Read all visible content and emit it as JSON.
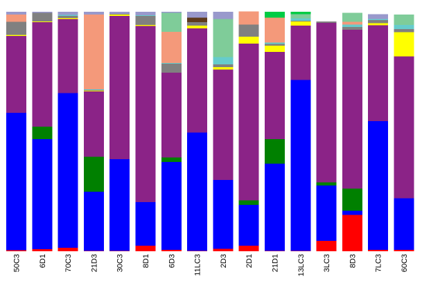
{
  "chart_data": {
    "type": "bar",
    "stacked": true,
    "orientation": "vertical",
    "title": "",
    "xlabel": "",
    "ylabel": "",
    "ylim": [
      0,
      1
    ],
    "grid": false,
    "legend": "none",
    "categories": [
      "50C3",
      "6D1",
      "70C3",
      "21D3",
      "30C3",
      "8D1",
      "6D3",
      "11LC3",
      "2D3",
      "2D1",
      "21D1",
      "13LC3",
      "3LC3",
      "8D3",
      "7LC3",
      "60C3"
    ],
    "series": [
      {
        "color": "#ff0000",
        "values": [
          0.005,
          0.008,
          0.014,
          0.002,
          0.002,
          0.023,
          0.006,
          0.002,
          0.01,
          0.023,
          0.002,
          0.002,
          0.044,
          0.152,
          0.006,
          0.006
        ]
      },
      {
        "color": "#0000ff",
        "values": [
          0.573,
          0.46,
          0.647,
          0.247,
          0.382,
          0.182,
          0.367,
          0.493,
          0.287,
          0.17,
          0.364,
          0.713,
          0.231,
          0.017,
          0.538,
          0.215
        ]
      },
      {
        "color": "#008000",
        "values": [
          0.0,
          0.052,
          0.0,
          0.146,
          0.0,
          0.0,
          0.018,
          0.0,
          0.0,
          0.02,
          0.102,
          0.0,
          0.012,
          0.092,
          0.0,
          0.0
        ]
      },
      {
        "color": "#8b2387",
        "values": [
          0.321,
          0.437,
          0.308,
          0.273,
          0.598,
          0.736,
          0.355,
          0.435,
          0.462,
          0.654,
          0.364,
          0.227,
          0.667,
          0.664,
          0.399,
          0.592
        ]
      },
      {
        "color": "#ffff00",
        "values": [
          0.004,
          0.003,
          0.005,
          0.002,
          0.006,
          0.004,
          0.0,
          0.012,
          0.01,
          0.029,
          0.027,
          0.017,
          0.0,
          0.0,
          0.01,
          0.102
        ]
      },
      {
        "color": "#808080",
        "values": [
          0.055,
          0.035,
          0.008,
          0.004,
          0.004,
          0.038,
          0.037,
          0.015,
          0.012,
          0.05,
          0.006,
          0.004,
          0.006,
          0.012,
          0.012,
          0.013
        ]
      },
      {
        "color": "#66cccc",
        "values": [
          0.0,
          0.0,
          0.005,
          0.003,
          0.0,
          0.003,
          0.003,
          0.0,
          0.029,
          0.0,
          0.006,
          0.009,
          0.0,
          0.009,
          0.005,
          0.017
        ]
      },
      {
        "color": "#f4997a",
        "values": [
          0.03,
          0.0,
          0.0,
          0.311,
          0.0,
          0.0,
          0.13,
          0.0,
          0.0,
          0.055,
          0.105,
          0.0,
          0.0,
          0.012,
          0.0,
          0.0
        ]
      },
      {
        "color": "#7fcc99",
        "values": [
          0.0,
          0.0,
          0.0,
          0.0,
          0.0,
          0.0,
          0.079,
          0.0,
          0.159,
          0.0,
          0.0,
          0.018,
          0.0,
          0.038,
          0.0,
          0.044
        ]
      },
      {
        "color": "#5e3a1c",
        "values": [
          0.0,
          0.0,
          0.0,
          0.0,
          0.0,
          0.0,
          0.0,
          0.019,
          0.0,
          0.0,
          0.0,
          0.0,
          0.0,
          0.0,
          0.0,
          0.0
        ]
      },
      {
        "color": "#9999cc",
        "values": [
          0.012,
          0.005,
          0.013,
          0.012,
          0.008,
          0.014,
          0.005,
          0.024,
          0.031,
          0.0,
          0.0,
          0.0,
          0.0,
          0.0,
          0.02,
          0.0
        ]
      },
      {
        "color": "#00cc44",
        "values": [
          0.0,
          0.0,
          0.0,
          0.0,
          0.0,
          0.0,
          0.0,
          0.0,
          0.0,
          0.0,
          0.024,
          0.01,
          0.0,
          0.0,
          0.0,
          0.0
        ]
      }
    ]
  }
}
